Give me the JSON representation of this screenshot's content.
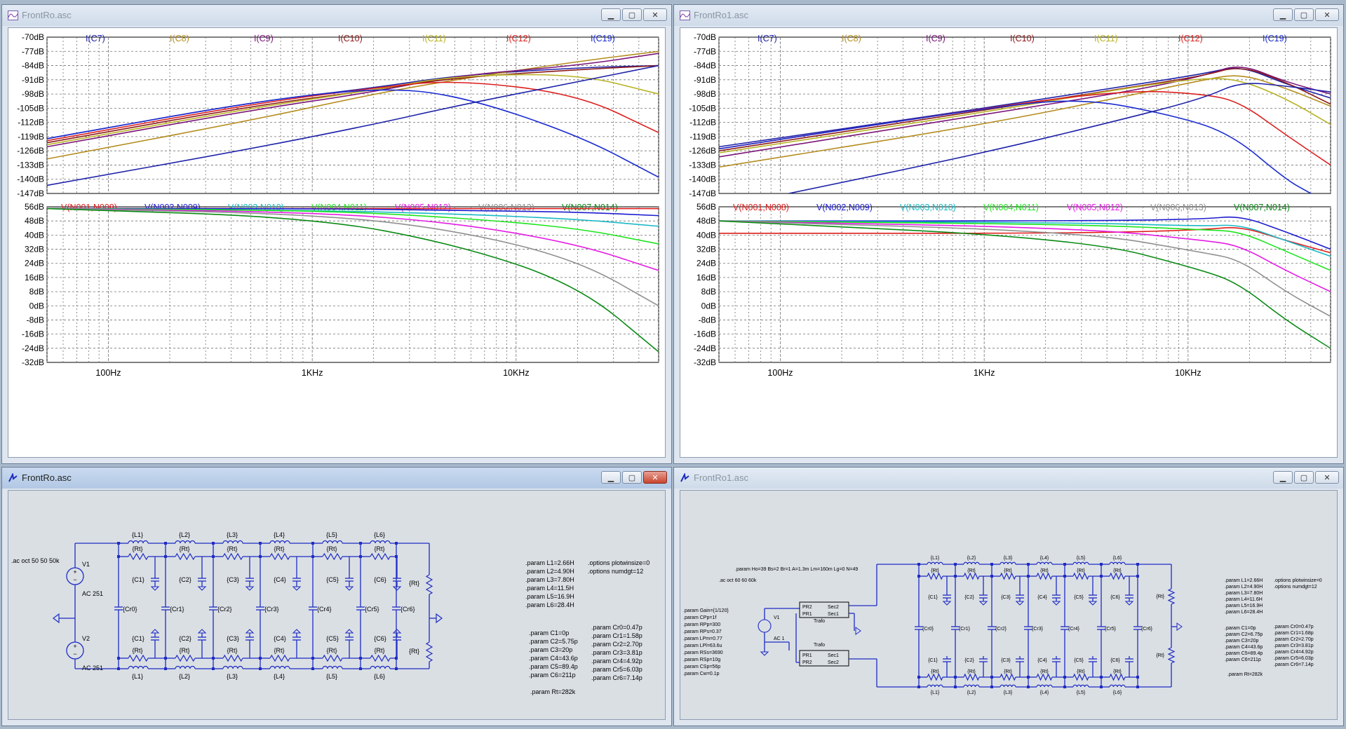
{
  "colors": {
    "C7": "#1e22a8",
    "C8": "#b48c1e",
    "C9": "#7a1478",
    "C10": "#8b1a1a",
    "C11": "#b8b224",
    "C12": "#dc1e1e",
    "C19": "#1c2cd0",
    "N1": "#e01c1c",
    "N2": "#1c1cd0",
    "N3": "#1ab8c4",
    "N4": "#1ce41c",
    "N5": "#e41ce4",
    "N6": "#909090",
    "N7": "#0a8a14",
    "schematic": "#1f2cc4"
  },
  "windows": {
    "top_left": {
      "title": "FrontRo.asc"
    },
    "top_right": {
      "title": "FrontRo1.asc"
    },
    "bottom_left": {
      "title": "FrontRo.asc"
    },
    "bottom_right": {
      "title": "FrontRo1.asc"
    }
  },
  "plots": {
    "current_legend": [
      "I(C7)",
      "I(C8)",
      "I(C9)",
      "I(C10)",
      "I(C11)",
      "I(C12)",
      "I(C19)"
    ],
    "voltage_legend": [
      "V(N001,N008)",
      "V(N002,N009)",
      "V(N003,N010)",
      "V(N004,N011)",
      "V(N005,N012)",
      "V(N006,N013)",
      "V(N007,N014)"
    ],
    "top_ticks": [
      "-70dB",
      "-77dB",
      "-84dB",
      "-91dB",
      "-98dB",
      "-105dB",
      "-112dB",
      "-119dB",
      "-126dB",
      "-133dB",
      "-140dB",
      "-147dB"
    ],
    "bottom_ticks": [
      "56dB",
      "48dB",
      "40dB",
      "32dB",
      "24dB",
      "16dB",
      "8dB",
      "0dB",
      "-8dB",
      "-16dB",
      "-24dB",
      "-32dB"
    ],
    "x_ticks": [
      "100Hz",
      "1KHz",
      "10KHz"
    ]
  },
  "chart_data": [
    {
      "type": "line",
      "ylabel": "",
      "ylim": [
        -147,
        -70
      ],
      "x_scale": "log",
      "xlim": [
        50,
        50000
      ],
      "series": [
        {
          "name": "I(C7)",
          "x": [
            50,
            500,
            2000,
            5000,
            20000,
            50000
          ],
          "y": [
            -120,
            -102,
            -95,
            -89,
            -85,
            -84
          ]
        },
        {
          "name": "I(C8)",
          "x": [
            50,
            500,
            2000,
            5000,
            20000,
            50000
          ],
          "y": [
            -130,
            -111,
            -98,
            -91,
            -82,
            -77
          ]
        },
        {
          "name": "I(C9)",
          "x": [
            50,
            500,
            2000,
            5000,
            20000,
            50000
          ],
          "y": [
            -124,
            -106,
            -97,
            -89,
            -84,
            -78
          ]
        },
        {
          "name": "I(C10)",
          "x": [
            50,
            500,
            2000,
            5000,
            20000,
            50000
          ],
          "y": [
            -122,
            -104,
            -96,
            -90,
            -86,
            -84
          ]
        },
        {
          "name": "I(C11)",
          "x": [
            50,
            500,
            2000,
            5000,
            20000,
            50000
          ],
          "y": [
            -123,
            -105,
            -96,
            -89,
            -88,
            -98
          ]
        },
        {
          "name": "I(C12)",
          "x": [
            50,
            500,
            2000,
            5000,
            20000,
            50000
          ],
          "y": [
            -121,
            -103,
            -95,
            -91,
            -98,
            -117
          ]
        },
        {
          "name": "I(C19)",
          "x": [
            50,
            500,
            2000,
            5000,
            20000,
            50000
          ],
          "y": [
            -120,
            -102,
            -95,
            -98,
            -118,
            -139
          ]
        },
        {
          "name": "",
          "x": [
            50,
            500,
            2000,
            5000,
            20000,
            50000
          ],
          "y": [
            -143,
            -125,
            -113,
            -104,
            -92,
            -84
          ]
        }
      ]
    },
    {
      "type": "line",
      "ylabel": "",
      "ylim": [
        -32,
        56
      ],
      "x_scale": "log",
      "xlim": [
        50,
        50000
      ],
      "series": [
        {
          "name": "V(N001,N008)",
          "x": [
            50,
            1000,
            10000,
            50000
          ],
          "y": [
            55,
            55,
            55,
            55
          ]
        },
        {
          "name": "V(N002,N009)",
          "x": [
            50,
            1000,
            5000,
            20000,
            50000
          ],
          "y": [
            55,
            55,
            54,
            53,
            51
          ]
        },
        {
          "name": "V(N003,N010)",
          "x": [
            50,
            1000,
            5000,
            20000,
            50000
          ],
          "y": [
            55,
            54,
            52,
            49,
            45
          ]
        },
        {
          "name": "V(N004,N011)",
          "x": [
            50,
            1000,
            5000,
            20000,
            50000
          ],
          "y": [
            55,
            54,
            50,
            44,
            35
          ]
        },
        {
          "name": "V(N005,N012)",
          "x": [
            50,
            1000,
            5000,
            20000,
            50000
          ],
          "y": [
            55,
            53,
            47,
            35,
            20
          ]
        },
        {
          "name": "V(N006,N013)",
          "x": [
            50,
            1000,
            5000,
            20000,
            50000
          ],
          "y": [
            55,
            52,
            43,
            26,
            0
          ]
        },
        {
          "name": "V(N007,N014)",
          "x": [
            50,
            1000,
            5000,
            20000,
            50000
          ],
          "y": [
            55,
            50,
            35,
            12,
            -26
          ]
        }
      ]
    },
    {
      "type": "line",
      "ylabel": "",
      "ylim": [
        -147,
        -70
      ],
      "x_scale": "log",
      "xlim": [
        50,
        50000
      ],
      "series": [
        {
          "name": "I(C7)",
          "x": [
            50,
            1000,
            5000,
            12000,
            18000,
            30000,
            50000
          ],
          "y": [
            -124,
            -105,
            -94,
            -88,
            -84,
            -93,
            -100
          ]
        },
        {
          "name": "I(C8)",
          "x": [
            50,
            1000,
            5000,
            12000,
            18000,
            30000,
            50000
          ],
          "y": [
            -134,
            -113,
            -99,
            -91,
            -88,
            -95,
            -104
          ]
        },
        {
          "name": "I(C9)",
          "x": [
            50,
            1000,
            5000,
            12000,
            18000,
            30000,
            50000
          ],
          "y": [
            -129,
            -108,
            -97,
            -89,
            -83,
            -92,
            -98
          ]
        },
        {
          "name": "I(C10)",
          "x": [
            50,
            1000,
            5000,
            12000,
            18000,
            30000,
            50000
          ],
          "y": [
            -126,
            -106,
            -95,
            -89,
            -84,
            -92,
            -103
          ]
        },
        {
          "name": "I(C11)",
          "x": [
            50,
            1000,
            5000,
            12000,
            18000,
            30000,
            50000
          ],
          "y": [
            -127,
            -107,
            -95,
            -90,
            -91,
            -100,
            -113
          ]
        },
        {
          "name": "I(C12)",
          "x": [
            50,
            1000,
            5000,
            12000,
            18000,
            30000,
            50000
          ],
          "y": [
            -125,
            -105,
            -96,
            -98,
            -102,
            -118,
            -133
          ]
        },
        {
          "name": "I(C19)",
          "x": [
            50,
            1000,
            3000,
            8000,
            16000,
            30000,
            40000
          ],
          "y": [
            -125,
            -105,
            -100,
            -108,
            -117,
            -140,
            -147
          ]
        },
        {
          "name": "",
          "x": [
            110,
            1000,
            5000,
            12000,
            18000,
            30000,
            50000
          ],
          "y": [
            -147,
            -127,
            -110,
            -100,
            -92,
            -94,
            -97
          ]
        }
      ]
    },
    {
      "type": "line",
      "ylabel": "",
      "ylim": [
        -32,
        56
      ],
      "x_scale": "log",
      "xlim": [
        50,
        50000
      ],
      "series": [
        {
          "name": "V(N001,N008)",
          "x": [
            50,
            3000,
            12000,
            18000,
            30000,
            50000
          ],
          "y": [
            41,
            41,
            43,
            45,
            37,
            30
          ]
        },
        {
          "name": "V(N002,N009)",
          "x": [
            50,
            3000,
            12000,
            18000,
            30000,
            50000
          ],
          "y": [
            48,
            48,
            49,
            51,
            42,
            32
          ]
        },
        {
          "name": "V(N003,N010)",
          "x": [
            50,
            3000,
            12000,
            18000,
            30000,
            50000
          ],
          "y": [
            48,
            47,
            45,
            46,
            37,
            28
          ]
        },
        {
          "name": "V(N004,N011)",
          "x": [
            50,
            3000,
            12000,
            18000,
            30000,
            50000
          ],
          "y": [
            48,
            46,
            43,
            42,
            31,
            20
          ]
        },
        {
          "name": "V(N005,N012)",
          "x": [
            50,
            3000,
            12000,
            18000,
            30000,
            50000
          ],
          "y": [
            48,
            44,
            37,
            34,
            20,
            8
          ]
        },
        {
          "name": "V(N006,N013)",
          "x": [
            50,
            3000,
            12000,
            18000,
            30000,
            50000
          ],
          "y": [
            48,
            42,
            30,
            26,
            8,
            -6
          ]
        },
        {
          "name": "V(N007,N014)",
          "x": [
            50,
            3000,
            12000,
            18000,
            30000,
            50000
          ],
          "y": [
            48,
            38,
            20,
            12,
            -8,
            -24
          ]
        }
      ]
    }
  ],
  "schematic_left": {
    "inductors": [
      "{L1}",
      "{L2}",
      "{L3}",
      "{L4}",
      "{L5}",
      "{L6}"
    ],
    "resistor": "{Rt}",
    "caps_c": [
      "{C1}",
      "{C2}",
      "{C3}",
      "{C4}",
      "{C5}",
      "{C6}"
    ],
    "caps_cr": [
      "{Cr0}",
      "{Cr1}",
      "{Cr2}",
      "{Cr3}",
      "{Cr4}",
      "{Cr5}",
      "{Cr6}"
    ],
    "v1_name": "V1",
    "v1_val": "AC 251",
    "v2_name": "V2",
    "v2_val": "AC 251",
    "ac_cmd": ".ac oct 50 50 50k",
    "params_l": [
      ".param L1=2.66H",
      ".param L2=4.90H",
      ".param L3=7.80H",
      ".param L4=11.5H",
      ".param L5=16.9H",
      ".param L6=28.4H"
    ],
    "options": [
      ".options plotwinsize=0",
      ".options numdgt=12"
    ],
    "params_c": [
      ".param C1=0p",
      ".param C2=5.75p",
      ".param C3=20p",
      ".param C4=43.6p",
      ".param C5=89.4p",
      ".param C6=211p"
    ],
    "params_cr": [
      ".param Cr0=0.47p",
      ".param Cr1=1.58p",
      ".param Cr2=2.70p",
      ".param Cr3=3.81p",
      ".param Cr4=4.92p",
      ".param Cr5=6.03p",
      ".param Cr6=7.14p"
    ],
    "param_rt": ".param Rt=282k"
  },
  "schematic_right": {
    "trafo_param": ".param Ho=39 Bs=2 Br=1 A=1.3m Lm=160m Lg=0 N=49",
    "ac_cmd": ".ac oct 60 60 60k",
    "params_left": [
      ".param Gain={1/120}",
      ".param CPp=1f",
      ".param RPp=300",
      ".param RPs=0.37",
      ".param LPm=0.77",
      ".param LPl=63.6u",
      ".param RSs=3690",
      ".param RSp=10g",
      ".param CSp=56p",
      ".param Cw=0.1p"
    ],
    "v1_name": "V1",
    "v1_val": "AC 1",
    "trafo_label": "Trafo",
    "trafo_pins_top": [
      "PR2",
      "Sec2",
      "PR1",
      "Sec1"
    ],
    "trafo_pins_bot": [
      "PR1",
      "Sec1",
      "PR2",
      "Sec2"
    ],
    "params_l": [
      ".param L1=2.66H",
      ".param L2=4.90H",
      ".param L3=7.80H",
      ".param L4=11.6H",
      ".param L5=16.9H",
      ".param L6=28.4H"
    ],
    "options": [
      ".options plotwinsize=0",
      ".options numdgt=12"
    ],
    "params_c": [
      ".param C1=0p",
      ".param C2=6.75p",
      ".param C3=20p",
      ".param C4=43.6p",
      ".param C5=89.4p",
      ".param C6=211p"
    ],
    "params_cr": [
      ".param Cr0=0.47p",
      ".param Cr1=1.68p",
      ".param Cr2=2.70p",
      ".param Cr3=3.81p",
      ".param Cr4=4.92p",
      ".param Cr5=6.03p",
      ".param Cr6=7.14p"
    ],
    "param_rt": ".param Rt=282k"
  }
}
